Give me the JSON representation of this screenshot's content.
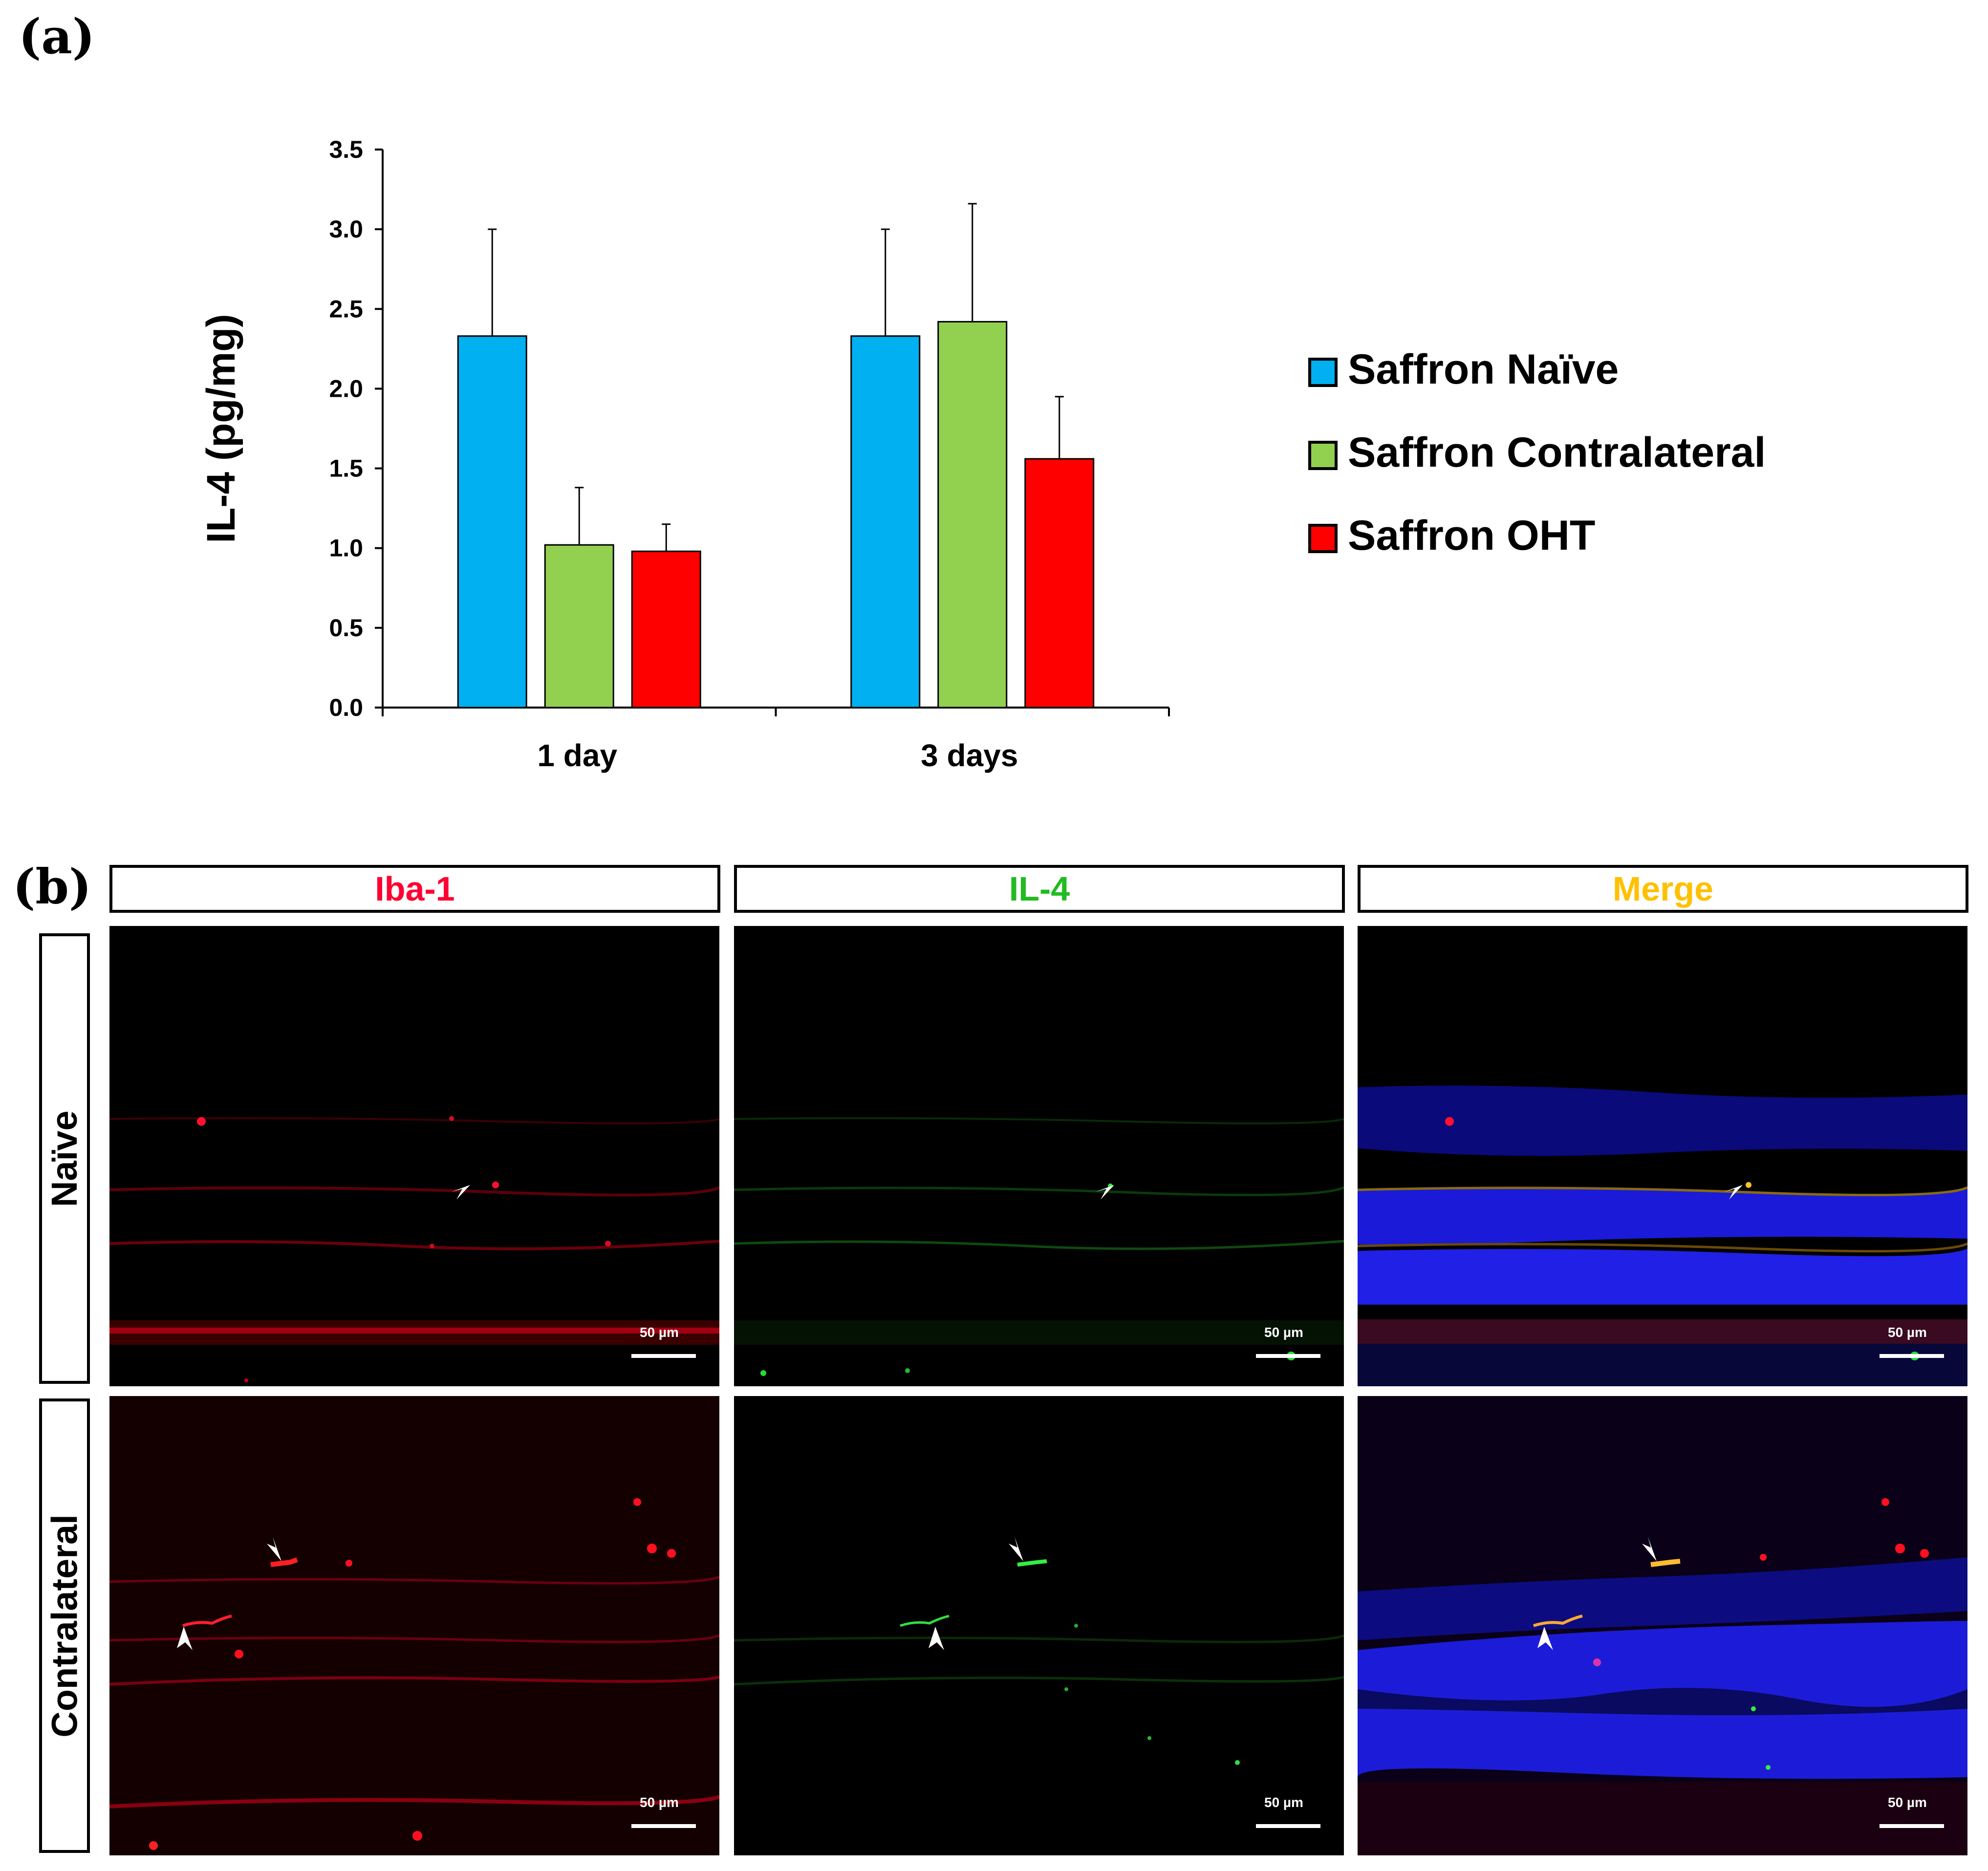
{
  "panel_a_label": "(a)",
  "panel_b_label": "(b)",
  "chart_data": {
    "type": "bar",
    "title": "",
    "xlabel": "",
    "ylabel": "IL-4 (pg/mg)",
    "categories": [
      "1 day",
      "3 days"
    ],
    "ylim": [
      0,
      3.5
    ],
    "yticks": [
      "0.0",
      "0.5",
      "1.0",
      "1.5",
      "2.0",
      "2.5",
      "3.0",
      "3.5"
    ],
    "series": [
      {
        "name": "Saffron Naïve",
        "color": "#00b0f0",
        "values": [
          2.33,
          2.33
        ],
        "errors": [
          0.67,
          0.67
        ]
      },
      {
        "name": "Saffron Contralateral",
        "color": "#92d050",
        "values": [
          1.02,
          2.42
        ],
        "errors": [
          0.36,
          0.74
        ]
      },
      {
        "name": "Saffron OHT",
        "color": "#ff0000",
        "values": [
          0.98,
          1.56
        ],
        "errors": [
          0.17,
          0.39
        ]
      }
    ],
    "legend_position": "right",
    "grid": false
  },
  "panel_b": {
    "columns": [
      {
        "label": "Iba-1",
        "color": "#ff0033"
      },
      {
        "label": "IL-4",
        "color": "#22bb22"
      },
      {
        "label": "Merge",
        "color": "#ffc000"
      }
    ],
    "rows": [
      {
        "label": "Naïve"
      },
      {
        "label": "Contralateral"
      }
    ],
    "scale_bar_label": "50 µm"
  }
}
